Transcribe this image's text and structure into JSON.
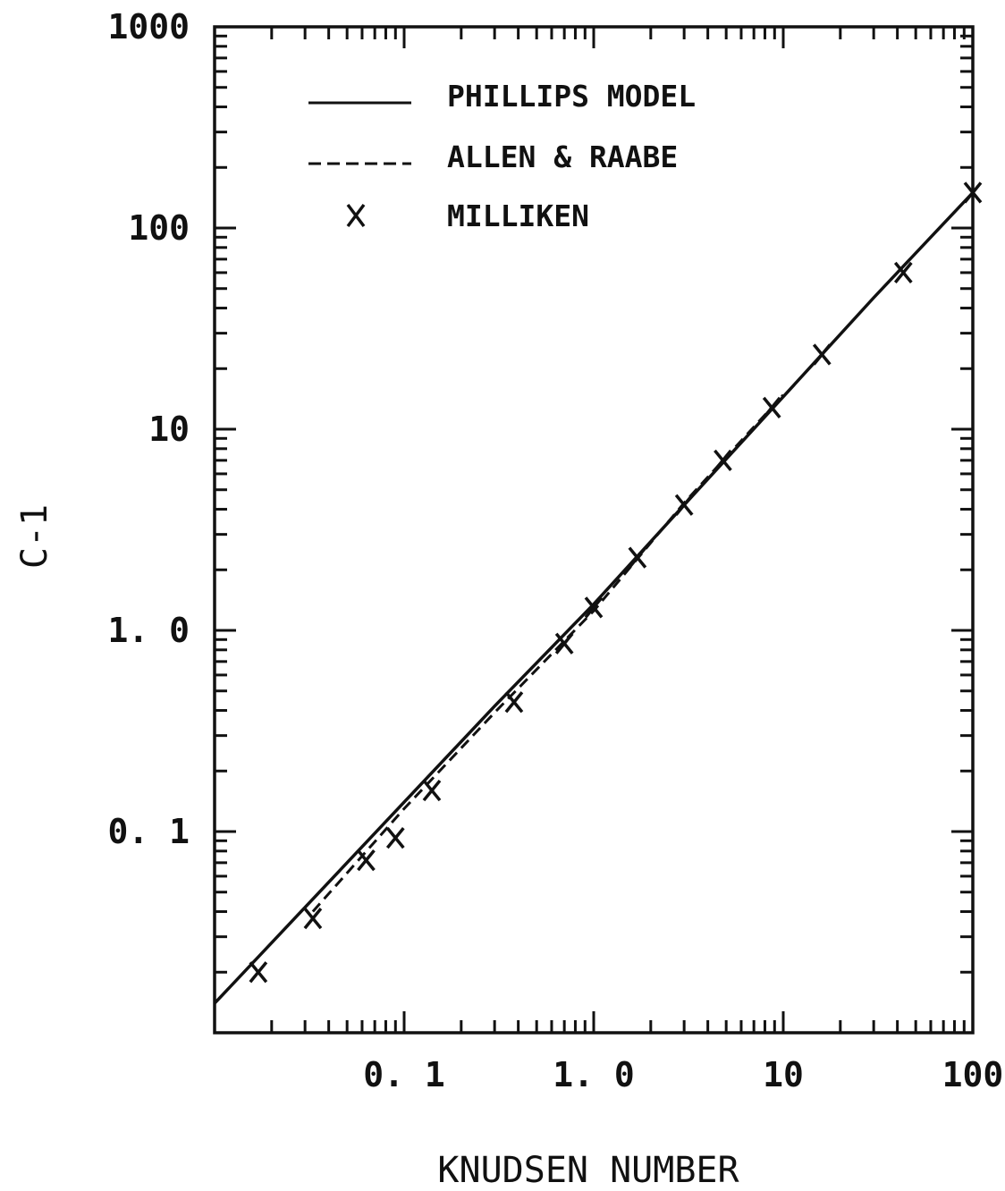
{
  "chart_data": {
    "type": "line",
    "xlabel": "KNUDSEN NUMBER",
    "ylabel": "C-1",
    "x_scale": "log",
    "y_scale": "log",
    "xlim": [
      0.01,
      100
    ],
    "ylim": [
      0.01,
      1000
    ],
    "x_tick_labels": [
      {
        "value": 0.1,
        "label": "0. 1"
      },
      {
        "value": 1,
        "label": "1. 0"
      },
      {
        "value": 10,
        "label": "10"
      },
      {
        "value": 100,
        "label": "100"
      }
    ],
    "y_tick_labels": [
      {
        "value": 0.1,
        "label": "0. 1"
      },
      {
        "value": 1,
        "label": "1. 0"
      },
      {
        "value": 10,
        "label": "10"
      },
      {
        "value": 100,
        "label": "100"
      },
      {
        "value": 1000,
        "label": "1000"
      }
    ],
    "legend_position": "top-left",
    "series": [
      {
        "name": "PHILLIPS MODEL",
        "style": "solid",
        "x": [
          0.01,
          0.03,
          0.1,
          0.3,
          1,
          3,
          10,
          30,
          100
        ],
        "y": [
          0.014,
          0.042,
          0.14,
          0.42,
          1.35,
          4.2,
          14.5,
          45,
          150
        ]
      },
      {
        "name": "ALLEN & RAABE",
        "style": "dashed",
        "x": [
          0.033,
          0.1,
          0.3,
          1,
          3,
          10
        ],
        "y": [
          0.04,
          0.13,
          0.39,
          1.25,
          4.3,
          14.8
        ]
      },
      {
        "name": "MILLIKEN",
        "style": "markers",
        "marker": "x",
        "x": [
          0.017,
          0.033,
          0.063,
          0.09,
          0.14,
          0.38,
          0.7,
          1.0,
          1.7,
          3.0,
          4.8,
          8.7,
          16,
          43,
          100
        ],
        "y": [
          0.02,
          0.037,
          0.072,
          0.093,
          0.16,
          0.44,
          0.86,
          1.3,
          2.3,
          4.2,
          7.0,
          12.8,
          23.5,
          60,
          150
        ]
      }
    ]
  }
}
